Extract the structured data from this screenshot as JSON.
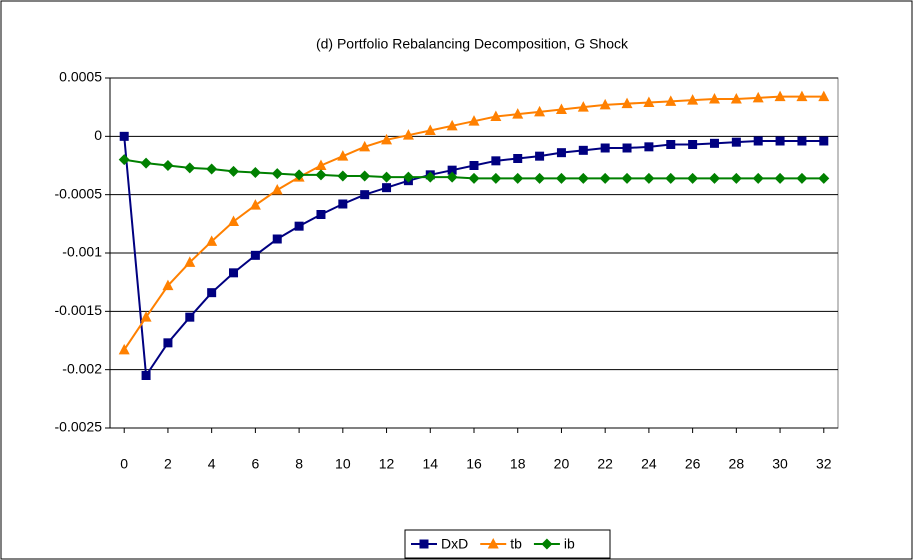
{
  "chart_data": {
    "type": "line",
    "title": "(d) Portfolio Rebalancing Decomposition, G Shock",
    "x": [
      0,
      1,
      2,
      3,
      4,
      5,
      6,
      7,
      8,
      9,
      10,
      11,
      12,
      13,
      14,
      15,
      16,
      17,
      18,
      19,
      20,
      21,
      22,
      23,
      24,
      25,
      26,
      27,
      28,
      29,
      30,
      31,
      32
    ],
    "xlim": [
      -0.65,
      32.65
    ],
    "xticks": [
      0,
      2,
      4,
      6,
      8,
      10,
      12,
      14,
      16,
      18,
      20,
      22,
      24,
      26,
      28,
      30,
      32
    ],
    "ylim": [
      -0.0025,
      0.0005
    ],
    "yticks": [
      0.0005,
      0,
      -0.0005,
      -0.001,
      -0.0015,
      -0.002,
      -0.0025
    ],
    "grid": true,
    "legend": "bottom",
    "series": [
      {
        "name": "DxD",
        "color": "#000080",
        "marker": "square",
        "values": [
          0,
          -0.00205,
          -0.00177,
          -0.00155,
          -0.00134,
          -0.00117,
          -0.00102,
          -0.00088,
          -0.00077,
          -0.00067,
          -0.00058,
          -0.0005,
          -0.00044,
          -0.00038,
          -0.00033,
          -0.00029,
          -0.00025,
          -0.00021,
          -0.00019,
          -0.00017,
          -0.00014,
          -0.00012,
          -0.0001,
          -0.0001,
          -9e-05,
          -7e-05,
          -7e-05,
          -6e-05,
          -5e-05,
          -4e-05,
          -4e-05,
          -4e-05,
          -4e-05
        ]
      },
      {
        "name": "tb",
        "color": "#ff8000",
        "marker": "triangle",
        "values": [
          -0.00183,
          -0.00155,
          -0.00128,
          -0.00108,
          -0.0009,
          -0.00073,
          -0.00059,
          -0.00046,
          -0.00035,
          -0.00025,
          -0.00017,
          -9e-05,
          -3e-05,
          1e-05,
          5e-05,
          9e-05,
          0.00013,
          0.00017,
          0.00019,
          0.00021,
          0.00023,
          0.00025,
          0.00027,
          0.00028,
          0.00029,
          0.0003,
          0.00031,
          0.00032,
          0.00032,
          0.00033,
          0.00034,
          0.00034,
          0.00034
        ]
      },
      {
        "name": "ib",
        "color": "#008000",
        "marker": "diamond",
        "values": [
          -0.0002,
          -0.00023,
          -0.00025,
          -0.00027,
          -0.00028,
          -0.0003,
          -0.00031,
          -0.00032,
          -0.00033,
          -0.00033,
          -0.00034,
          -0.00034,
          -0.00035,
          -0.00035,
          -0.00035,
          -0.00035,
          -0.00036,
          -0.00036,
          -0.00036,
          -0.00036,
          -0.00036,
          -0.00036,
          -0.00036,
          -0.00036,
          -0.00036,
          -0.00036,
          -0.00036,
          -0.00036,
          -0.00036,
          -0.00036,
          -0.00036,
          -0.00036,
          -0.00036
        ]
      }
    ]
  }
}
